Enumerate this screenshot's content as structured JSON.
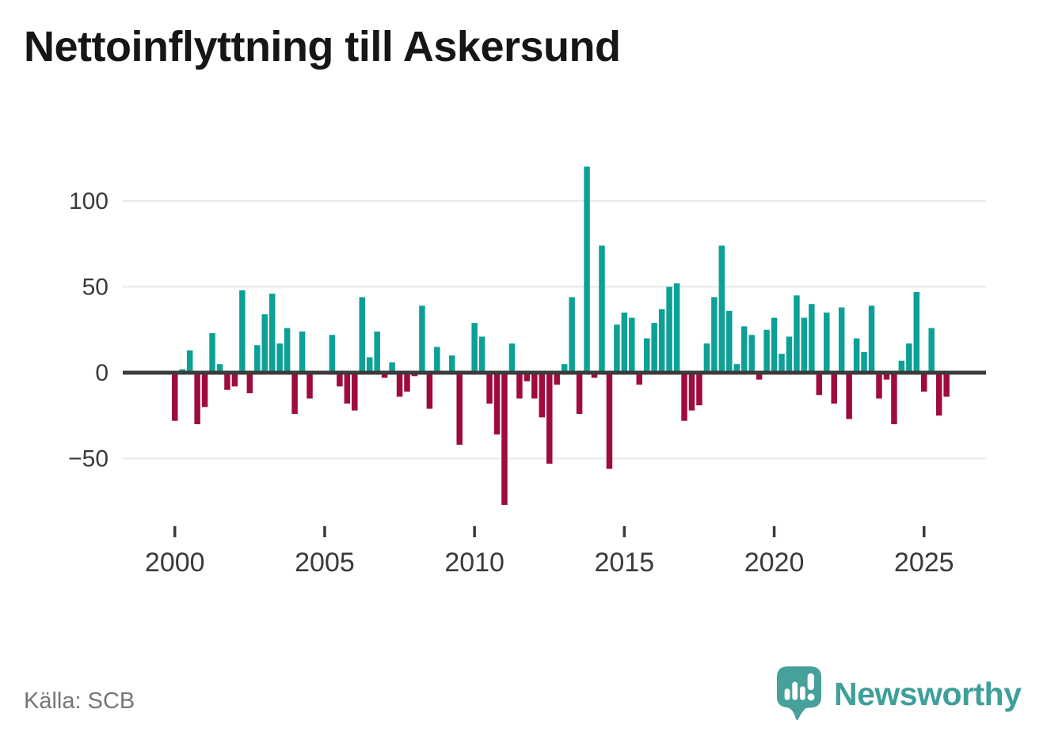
{
  "title": "Nettoinflyttning till Askersund",
  "source": "Källa: SCB",
  "branding": {
    "name": "Newsworthy"
  },
  "chart_data": {
    "type": "bar",
    "title": "Nettoinflyttning till Askersund",
    "frequency": "quarterly",
    "x_range": "2000 Q1 – 2025 Q4",
    "grid": "horizontal",
    "legend": "none",
    "ylim": [
      -85,
      130
    ],
    "yticks": [
      100,
      50,
      0,
      -50
    ],
    "ytick_labels": [
      "100",
      "50",
      "0",
      "−50"
    ],
    "xticks": [
      2000,
      2005,
      2010,
      2015,
      2020,
      2025
    ],
    "positive_color": "#0da096",
    "negative_color": "#a00b3e",
    "zero_line_color": "#3b3b3b",
    "gridline_color": "#e8e8e8",
    "axis_label_color": "#3a3a3a",
    "values_by_year": {
      "2000": [
        -28,
        2,
        13,
        -30
      ],
      "2001": [
        -20,
        23,
        5,
        -10
      ],
      "2002": [
        -8,
        48,
        -12,
        16
      ],
      "2003": [
        34,
        46,
        17,
        26
      ],
      "2004": [
        -24,
        24,
        -15,
        0
      ],
      "2005": [
        0,
        22,
        -8,
        -18
      ],
      "2006": [
        -22,
        44,
        9,
        24
      ],
      "2007": [
        -3,
        6,
        -14,
        -11
      ],
      "2008": [
        -2,
        39,
        -21,
        15
      ],
      "2009": [
        0,
        10,
        -42,
        0
      ],
      "2010": [
        29,
        21,
        -18,
        -36
      ],
      "2011": [
        -77,
        17,
        -15,
        -5
      ],
      "2012": [
        -15,
        -26,
        -53,
        -7
      ],
      "2013": [
        5,
        44,
        -24,
        120
      ],
      "2014": [
        -3,
        74,
        -56,
        28
      ],
      "2015": [
        35,
        32,
        -7,
        20
      ],
      "2016": [
        29,
        37,
        50,
        52
      ],
      "2017": [
        -28,
        -22,
        -19,
        17
      ],
      "2018": [
        44,
        74,
        36,
        5
      ],
      "2019": [
        27,
        22,
        -4,
        25
      ],
      "2020": [
        32,
        11,
        21,
        45
      ],
      "2021": [
        32,
        40,
        -13,
        35
      ],
      "2022": [
        -18,
        38,
        -27,
        20
      ],
      "2023": [
        12,
        39,
        -15,
        -4
      ],
      "2024": [
        -30,
        7,
        17,
        47
      ],
      "2025": [
        -11,
        26,
        -25,
        -14
      ]
    }
  }
}
